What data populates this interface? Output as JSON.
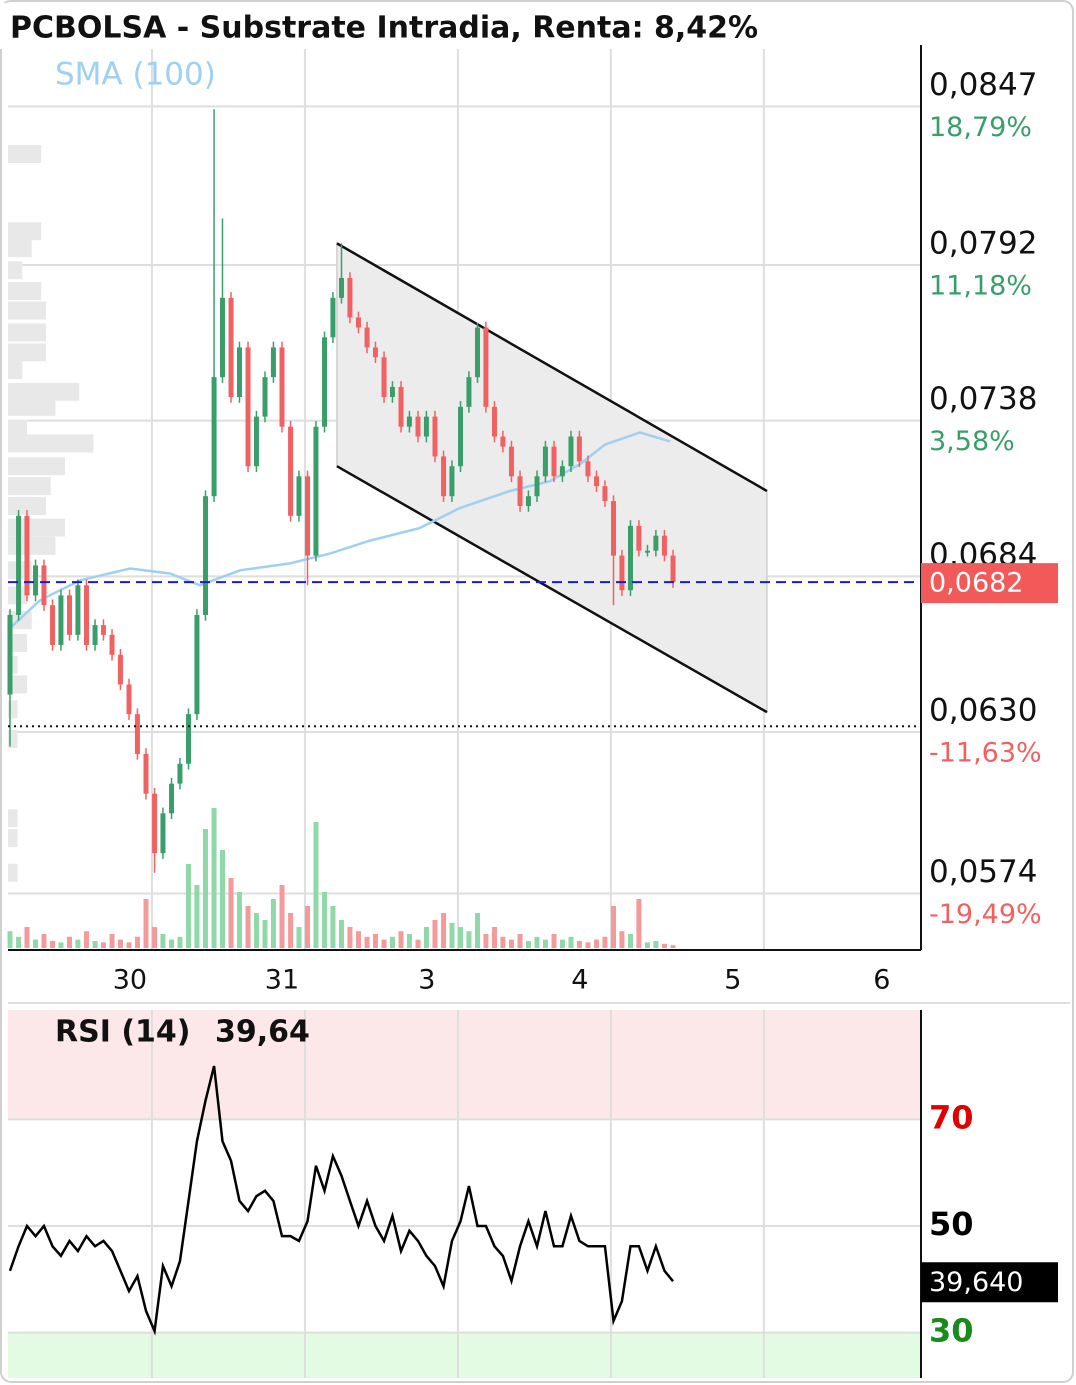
{
  "chart_data": [
    {
      "type": "candlestick",
      "title": "PCBOLSA - Substrate Intradia, Renta: 8,42%",
      "xlim": [
        -0.941,
        5.027
      ],
      "xticks": [
        {
          "value": -0.144,
          "label": "30"
        },
        {
          "value": 0.85,
          "label": "31"
        },
        {
          "value": 1.797,
          "label": "3"
        },
        {
          "value": 2.797,
          "label": "4"
        },
        {
          "value": 3.797,
          "label": "5"
        },
        {
          "value": 4.771,
          "label": "6"
        }
      ],
      "xgrid": [
        0,
        1,
        2,
        3,
        4
      ],
      "ylim": [
        0.05544,
        0.08683
      ],
      "yticks": [
        {
          "value": 0.0847,
          "label": "0,0847",
          "change": "18,79%"
        },
        {
          "value": 0.0792,
          "label": "0,0792",
          "change": "11,18%"
        },
        {
          "value": 0.0738,
          "label": "0,0738",
          "change": "3,58%"
        },
        {
          "value": 0.0684,
          "label": "0,0684"
        },
        {
          "value": 0.063,
          "label": "0,0630",
          "change": "-11,63%"
        },
        {
          "value": 0.0574,
          "label": "0,0574",
          "change": "-19,49%"
        }
      ],
      "up_color": "#3a9e6a",
      "down_color": "#f06262",
      "candles": {
        "x": [
          -0.928,
          -0.872,
          -0.817,
          -0.761,
          -0.706,
          -0.65,
          -0.595,
          -0.539,
          -0.484,
          -0.428,
          -0.372,
          -0.317,
          -0.261,
          -0.206,
          -0.15,
          -0.095,
          -0.039,
          0.017,
          0.072,
          0.128,
          0.183,
          0.239,
          0.294,
          0.35,
          0.406,
          0.461,
          0.517,
          0.572,
          0.628,
          0.683,
          0.739,
          0.794,
          0.85,
          0.906,
          0.961,
          1.017,
          1.072,
          1.128,
          1.183,
          1.239,
          1.294,
          1.35,
          1.406,
          1.461,
          1.517,
          1.572,
          1.628,
          1.683,
          1.739,
          1.794,
          1.85,
          1.906,
          1.961,
          2.017,
          2.072,
          2.128,
          2.183,
          2.239,
          2.294,
          2.35,
          2.406,
          2.461,
          2.517,
          2.572,
          2.628,
          2.683,
          2.739,
          2.794,
          2.85,
          2.906,
          2.961,
          3.017,
          3.072,
          3.128,
          3.183,
          3.239,
          3.294,
          3.35,
          3.406
        ],
        "open": [
          0.0643,
          0.06706,
          0.0705,
          0.06774,
          0.06878,
          0.0674,
          0.06602,
          0.06774,
          0.06637,
          0.06809,
          0.06602,
          0.06671,
          0.06637,
          0.06568,
          0.06465,
          0.06362,
          0.06224,
          0.06086,
          0.0588,
          0.06018,
          0.06121,
          0.0619,
          0.06362,
          0.06706,
          0.07118,
          0.07531,
          0.07806,
          0.07462,
          0.07634,
          0.07222,
          0.07394,
          0.07531,
          0.07634,
          0.07359,
          0.0705,
          0.07187,
          0.06912,
          0.07359,
          0.07669,
          0.07806,
          0.07875,
          0.07738,
          0.07703,
          0.07634,
          0.076,
          0.07462,
          0.07497,
          0.07359,
          0.07394,
          0.07325,
          0.07394,
          0.07256,
          0.07118,
          0.07222,
          0.07428,
          0.07531,
          0.07703,
          0.07428,
          0.07325,
          0.0729,
          0.07187,
          0.07084,
          0.07118,
          0.07187,
          0.0729,
          0.07187,
          0.07222,
          0.07325,
          0.07239,
          0.07187,
          0.07153,
          0.07101,
          0.06912,
          0.06792,
          0.07015,
          0.06929,
          0.06929,
          0.06981,
          0.06912
        ],
        "high": [
          0.06726,
          0.0707,
          0.0707,
          0.06898,
          0.06898,
          0.0676,
          0.06794,
          0.06794,
          0.06829,
          0.06829,
          0.06691,
          0.06691,
          0.06657,
          0.06588,
          0.06485,
          0.06382,
          0.06244,
          0.06106,
          0.06038,
          0.06141,
          0.0621,
          0.06382,
          0.06726,
          0.07138,
          0.0846,
          0.08081,
          0.07826,
          0.07654,
          0.07654,
          0.07414,
          0.07551,
          0.07654,
          0.07654,
          0.07379,
          0.07207,
          0.07207,
          0.07379,
          0.07689,
          0.07826,
          0.07995,
          0.07895,
          0.07758,
          0.07723,
          0.07654,
          0.0762,
          0.07517,
          0.07517,
          0.07414,
          0.07414,
          0.07414,
          0.07414,
          0.07276,
          0.07242,
          0.07448,
          0.07551,
          0.0772,
          0.07723,
          0.07448,
          0.07345,
          0.0731,
          0.07207,
          0.07138,
          0.07207,
          0.0731,
          0.0731,
          0.07242,
          0.07345,
          0.07345,
          0.07259,
          0.07207,
          0.07173,
          0.07121,
          0.06932,
          0.07035,
          0.07035,
          0.06949,
          0.07001,
          0.07001,
          0.06932
        ],
        "low": [
          0.0625,
          0.06686,
          0.06754,
          0.06754,
          0.0672,
          0.06582,
          0.06582,
          0.06617,
          0.06617,
          0.06582,
          0.06582,
          0.06617,
          0.06548,
          0.06445,
          0.06342,
          0.06204,
          0.06066,
          0.05812,
          0.0586,
          0.05998,
          0.06101,
          0.0617,
          0.06342,
          0.06686,
          0.07098,
          0.07511,
          0.07442,
          0.07442,
          0.07202,
          0.07202,
          0.07374,
          0.07511,
          0.07339,
          0.0703,
          0.0703,
          0.06809,
          0.06892,
          0.07339,
          0.07649,
          0.07786,
          0.07718,
          0.07683,
          0.07614,
          0.0758,
          0.07442,
          0.07442,
          0.07339,
          0.07339,
          0.07305,
          0.07305,
          0.07236,
          0.07098,
          0.07098,
          0.07202,
          0.07408,
          0.07511,
          0.07408,
          0.07305,
          0.0727,
          0.07167,
          0.07064,
          0.07064,
          0.07098,
          0.07167,
          0.07167,
          0.07167,
          0.07202,
          0.07219,
          0.07167,
          0.07133,
          0.07081,
          0.0674,
          0.06772,
          0.06772,
          0.06909,
          0.06909,
          0.06909,
          0.06892,
          0.068
        ],
        "close": [
          0.06706,
          0.0705,
          0.06774,
          0.06878,
          0.0674,
          0.06602,
          0.06774,
          0.06637,
          0.06809,
          0.06602,
          0.06671,
          0.06637,
          0.06568,
          0.06465,
          0.06362,
          0.06224,
          0.06086,
          0.0588,
          0.06018,
          0.06121,
          0.0619,
          0.06362,
          0.06706,
          0.07118,
          0.07531,
          0.07806,
          0.07462,
          0.07634,
          0.07222,
          0.07394,
          0.07531,
          0.07634,
          0.07359,
          0.0705,
          0.07187,
          0.06912,
          0.07359,
          0.07669,
          0.07806,
          0.07875,
          0.07738,
          0.07703,
          0.07634,
          0.076,
          0.07462,
          0.07497,
          0.07359,
          0.07394,
          0.07325,
          0.07394,
          0.07256,
          0.07118,
          0.07222,
          0.07428,
          0.07531,
          0.07703,
          0.07428,
          0.07325,
          0.0729,
          0.07187,
          0.07084,
          0.07118,
          0.07187,
          0.0729,
          0.07187,
          0.07222,
          0.07325,
          0.07239,
          0.07187,
          0.07153,
          0.07101,
          0.06912,
          0.06792,
          0.07015,
          0.06929,
          0.06929,
          0.06981,
          0.06912,
          0.0682
        ]
      },
      "volume": {
        "ylim": [
          0,
          100
        ],
        "up_color": "#8fd9a8",
        "down_color": "#f59a9a",
        "values": [
          12,
          8,
          15,
          6,
          10,
          5,
          4,
          8,
          6,
          12,
          5,
          4,
          10,
          6,
          4,
          8,
          35,
          15,
          10,
          6,
          8,
          60,
          45,
          85,
          100,
          70,
          50,
          40,
          30,
          25,
          20,
          35,
          45,
          25,
          15,
          30,
          90,
          40,
          30,
          20,
          15,
          12,
          8,
          10,
          6,
          8,
          12,
          10,
          6,
          15,
          20,
          25,
          18,
          15,
          12,
          25,
          10,
          15,
          8,
          6,
          10,
          5,
          8,
          6,
          10,
          6,
          8,
          5,
          4,
          6,
          8,
          30,
          12,
          10,
          35,
          4,
          5,
          3,
          2
        ]
      },
      "volume_profile": {
        "xlim": [
          0,
          100
        ],
        "color": "#e8e8e8",
        "prices": [
          0.08305,
          0.08037,
          0.07978,
          0.07902,
          0.0783,
          0.07762,
          0.07686,
          0.07617,
          0.07555,
          0.0748,
          0.07428,
          0.07352,
          0.07301,
          0.07222,
          0.07153,
          0.07084,
          0.07009,
          0.06946,
          0.06861,
          0.06774,
          0.06688,
          0.06609,
          0.06533,
          0.06465,
          0.06379,
          0.06276,
          0.06001,
          0.05932,
          0.05812
        ],
        "values": [
          35,
          35,
          25,
          15,
          35,
          40,
          40,
          40,
          15,
          75,
          50,
          20,
          90,
          60,
          45,
          40,
          60,
          50,
          25,
          20,
          25,
          20,
          10,
          20,
          10,
          10,
          10,
          10,
          10
        ]
      },
      "sma": {
        "name": "SMA (100)",
        "color": "#9fd0f2",
        "x": [
          -0.941,
          -0.732,
          -0.471,
          -0.144,
          0.118,
          0.314,
          0.575,
          0.902,
          1.163,
          1.425,
          1.752,
          2.013,
          2.34,
          2.601,
          2.797,
          2.961,
          3.19,
          3.386
        ],
        "values": [
          0.06654,
          0.06757,
          0.06826,
          0.06867,
          0.0685,
          0.06809,
          0.06861,
          0.06885,
          0.06919,
          0.06964,
          0.07008,
          0.07077,
          0.07136,
          0.0717,
          0.07229,
          0.07297,
          0.07339,
          0.07308
        ]
      },
      "channel": {
        "x": [
          1.209,
          4.02
        ],
        "upper": [
          0.07995,
          0.07136
        ],
        "lower": [
          0.07222,
          0.06369
        ],
        "fill": "#ececec"
      },
      "support_line": 0.0632,
      "last_price": {
        "value": 0.0682,
        "label": "0,0682",
        "color": "#f25a5a",
        "line_color": "#1a1ad8"
      }
    },
    {
      "type": "line",
      "title": "RSI (14)",
      "value_label": "39,64",
      "color": "#000000",
      "xlim": [
        -0.941,
        5.027
      ],
      "xgrid": [
        0,
        1,
        2,
        3,
        4
      ],
      "ylim": [
        21.5,
        90.5
      ],
      "yticks": [
        70,
        50,
        30
      ],
      "ytick_colors": [
        "#e00000",
        "#000000",
        "#1a8a1a"
      ],
      "bands": {
        "overbought": 70,
        "oversold": 30,
        "overbought_color": "#fde8e9",
        "oversold_color": "#e2fbe2"
      },
      "x": [
        -0.928,
        -0.872,
        -0.817,
        -0.761,
        -0.706,
        -0.65,
        -0.595,
        -0.539,
        -0.484,
        -0.428,
        -0.372,
        -0.317,
        -0.261,
        -0.206,
        -0.15,
        -0.095,
        -0.039,
        0.017,
        0.072,
        0.128,
        0.183,
        0.239,
        0.294,
        0.35,
        0.406,
        0.461,
        0.517,
        0.572,
        0.628,
        0.683,
        0.739,
        0.794,
        0.85,
        0.906,
        0.961,
        1.017,
        1.072,
        1.128,
        1.183,
        1.239,
        1.294,
        1.35,
        1.406,
        1.461,
        1.517,
        1.572,
        1.628,
        1.683,
        1.739,
        1.794,
        1.85,
        1.906,
        1.961,
        2.017,
        2.072,
        2.128,
        2.183,
        2.239,
        2.294,
        2.35,
        2.406,
        2.461,
        2.517,
        2.572,
        2.628,
        2.683,
        2.739,
        2.794,
        2.85,
        2.906,
        2.961,
        3.017,
        3.072,
        3.128,
        3.183,
        3.239,
        3.294,
        3.35,
        3.406
      ],
      "values": [
        41.6,
        46.2,
        50,
        48.1,
        50,
        46.2,
        44.4,
        47.2,
        45.3,
        48.1,
        46.2,
        47.2,
        45.3,
        41.6,
        37.8,
        40.6,
        34.1,
        30.3,
        42.5,
        38.7,
        43.4,
        54.7,
        65.9,
        73.5,
        80.0,
        65.9,
        62.2,
        54.7,
        52.8,
        55.6,
        56.6,
        54.7,
        48.1,
        48.1,
        47.2,
        50.9,
        61.3,
        56.6,
        63.1,
        59.4,
        54.7,
        50,
        54.7,
        50,
        47.2,
        51.9,
        45.3,
        49.1,
        47.2,
        44.4,
        42.5,
        38.7,
        47.2,
        50.9,
        57.5,
        50,
        50,
        46.2,
        44.4,
        39.7,
        46.2,
        50.9,
        46.2,
        52.8,
        46.2,
        46.2,
        51.9,
        47.2,
        46.2,
        46.2,
        46.2,
        32.2,
        35.9,
        46.2,
        46.2,
        41.6,
        46.2,
        41.6,
        39.64
      ],
      "last_value": {
        "value": 39.64,
        "label": "39,640"
      }
    }
  ]
}
